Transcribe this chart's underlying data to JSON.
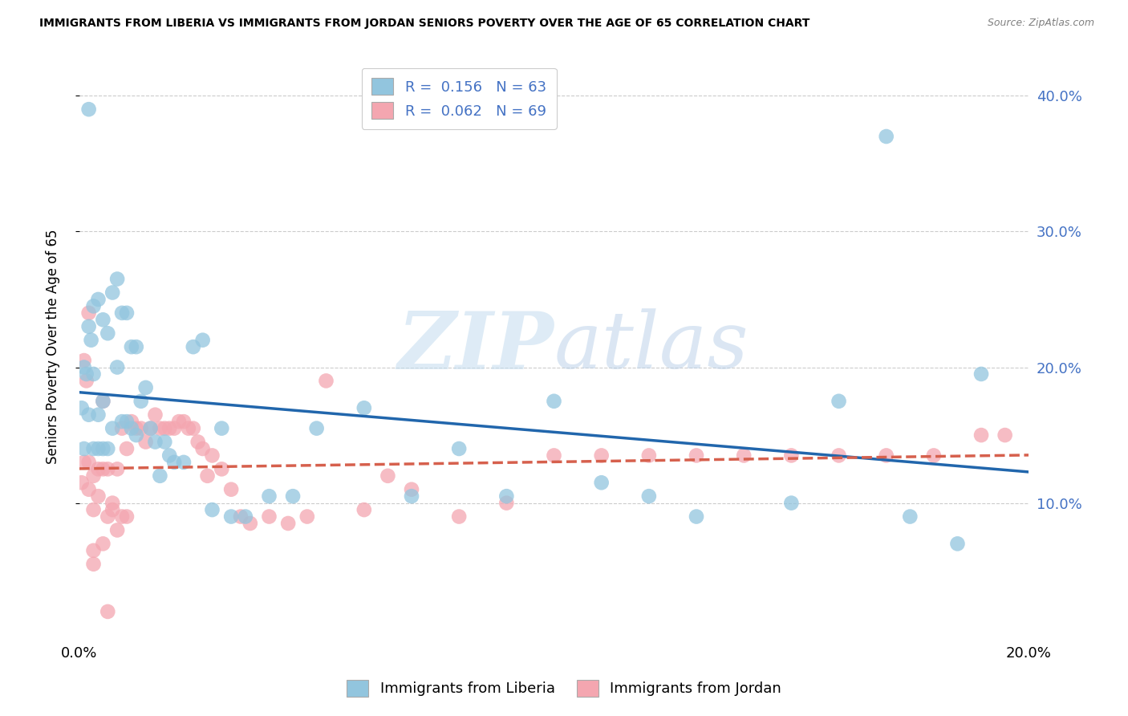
{
  "title": "IMMIGRANTS FROM LIBERIA VS IMMIGRANTS FROM JORDAN SENIORS POVERTY OVER THE AGE OF 65 CORRELATION CHART",
  "source": "Source: ZipAtlas.com",
  "ylabel": "Seniors Poverty Over the Age of 65",
  "xlim": [
    0.0,
    0.2
  ],
  "ylim": [
    0.0,
    0.43
  ],
  "yticks": [
    0.1,
    0.2,
    0.3,
    0.4
  ],
  "ytick_labels": [
    "10.0%",
    "20.0%",
    "30.0%",
    "40.0%"
  ],
  "watermark_zip": "ZIP",
  "watermark_atlas": "atlas",
  "legend_line1": "R =  0.156   N = 63",
  "legend_line2": "R =  0.062   N = 69",
  "color_liberia": "#92c5de",
  "color_jordan": "#f4a6b0",
  "color_liberia_line": "#2166ac",
  "color_jordan_line": "#d6604d",
  "color_text_blue": "#4472c4",
  "background_color": "#ffffff",
  "grid_color": "#cccccc",
  "liberia_scatter_x": [
    0.0005,
    0.001,
    0.001,
    0.0015,
    0.002,
    0.002,
    0.002,
    0.0025,
    0.003,
    0.003,
    0.003,
    0.004,
    0.004,
    0.004,
    0.005,
    0.005,
    0.005,
    0.006,
    0.006,
    0.007,
    0.007,
    0.008,
    0.008,
    0.009,
    0.009,
    0.01,
    0.01,
    0.011,
    0.011,
    0.012,
    0.012,
    0.013,
    0.014,
    0.015,
    0.016,
    0.017,
    0.018,
    0.019,
    0.02,
    0.022,
    0.024,
    0.026,
    0.028,
    0.03,
    0.032,
    0.035,
    0.04,
    0.045,
    0.05,
    0.06,
    0.07,
    0.08,
    0.09,
    0.1,
    0.11,
    0.12,
    0.13,
    0.15,
    0.16,
    0.17,
    0.175,
    0.185,
    0.19
  ],
  "liberia_scatter_y": [
    0.17,
    0.2,
    0.14,
    0.195,
    0.23,
    0.165,
    0.39,
    0.22,
    0.245,
    0.195,
    0.14,
    0.25,
    0.165,
    0.14,
    0.235,
    0.175,
    0.14,
    0.225,
    0.14,
    0.255,
    0.155,
    0.265,
    0.2,
    0.24,
    0.16,
    0.24,
    0.16,
    0.215,
    0.155,
    0.215,
    0.15,
    0.175,
    0.185,
    0.155,
    0.145,
    0.12,
    0.145,
    0.135,
    0.13,
    0.13,
    0.215,
    0.22,
    0.095,
    0.155,
    0.09,
    0.09,
    0.105,
    0.105,
    0.155,
    0.17,
    0.105,
    0.14,
    0.105,
    0.175,
    0.115,
    0.105,
    0.09,
    0.1,
    0.175,
    0.37,
    0.09,
    0.07,
    0.195
  ],
  "jordan_scatter_x": [
    0.0005,
    0.001,
    0.001,
    0.0015,
    0.002,
    0.002,
    0.003,
    0.003,
    0.003,
    0.004,
    0.004,
    0.005,
    0.005,
    0.005,
    0.006,
    0.006,
    0.007,
    0.007,
    0.008,
    0.008,
    0.009,
    0.009,
    0.01,
    0.01,
    0.011,
    0.012,
    0.013,
    0.014,
    0.015,
    0.016,
    0.017,
    0.018,
    0.019,
    0.02,
    0.021,
    0.022,
    0.023,
    0.024,
    0.025,
    0.026,
    0.027,
    0.028,
    0.03,
    0.032,
    0.034,
    0.036,
    0.04,
    0.044,
    0.048,
    0.052,
    0.06,
    0.065,
    0.07,
    0.08,
    0.09,
    0.1,
    0.11,
    0.12,
    0.13,
    0.14,
    0.15,
    0.16,
    0.17,
    0.18,
    0.19,
    0.195,
    0.003,
    0.006,
    0.002
  ],
  "jordan_scatter_y": [
    0.115,
    0.205,
    0.13,
    0.19,
    0.13,
    0.11,
    0.12,
    0.095,
    0.065,
    0.125,
    0.105,
    0.175,
    0.125,
    0.07,
    0.125,
    0.09,
    0.1,
    0.095,
    0.125,
    0.08,
    0.155,
    0.09,
    0.14,
    0.09,
    0.16,
    0.155,
    0.155,
    0.145,
    0.155,
    0.165,
    0.155,
    0.155,
    0.155,
    0.155,
    0.16,
    0.16,
    0.155,
    0.155,
    0.145,
    0.14,
    0.12,
    0.135,
    0.125,
    0.11,
    0.09,
    0.085,
    0.09,
    0.085,
    0.09,
    0.19,
    0.095,
    0.12,
    0.11,
    0.09,
    0.1,
    0.135,
    0.135,
    0.135,
    0.135,
    0.135,
    0.135,
    0.135,
    0.135,
    0.135,
    0.15,
    0.15,
    0.055,
    0.02,
    0.24
  ]
}
